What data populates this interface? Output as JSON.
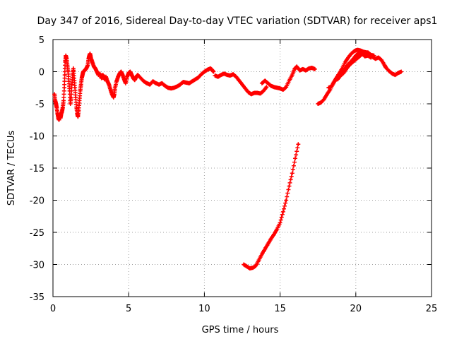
{
  "chart_data": {
    "type": "scatter",
    "title": "Day 347 of 2016, Sidereal Day-to-day VTEC variation (SDTVAR) for receiver aps1",
    "xlabel": "GPS time / hours",
    "ylabel": "SDTVAR / TECUs",
    "xlim": [
      0,
      25
    ],
    "ylim": [
      -35,
      5
    ],
    "xticks": [
      0,
      5,
      10,
      15,
      20,
      25
    ],
    "yticks": [
      5,
      0,
      -5,
      -10,
      -15,
      -20,
      -25,
      -30,
      -35
    ],
    "x_tick_labels": [
      "0",
      "5",
      "10",
      "15",
      "20",
      "25"
    ],
    "y_tick_labels": [
      "5",
      "0",
      "-5",
      "-10",
      "-15",
      "-20",
      "-25",
      "-30",
      "-35"
    ],
    "grid": true,
    "marker": "+",
    "series": [
      {
        "name": "aps1",
        "color": "#ff0000",
        "segments": [
          [
            [
              0.1,
              -3.5
            ],
            [
              0.15,
              -4.5
            ],
            [
              0.2,
              -5
            ],
            [
              0.25,
              -5.6
            ],
            [
              0.3,
              -6.5
            ],
            [
              0.35,
              -7.2
            ],
            [
              0.4,
              -7.5
            ],
            [
              0.45,
              -6.8
            ],
            [
              0.5,
              -7.2
            ],
            [
              0.55,
              -6.5
            ],
            [
              0.6,
              -6.2
            ],
            [
              0.65,
              -5.5
            ],
            [
              0.7,
              -4.5
            ],
            [
              0.75,
              -2.5
            ],
            [
              0.78,
              -0.5
            ],
            [
              0.8,
              1.5
            ],
            [
              0.85,
              2.5
            ],
            [
              0.9,
              2
            ],
            [
              0.95,
              1
            ],
            [
              1.0,
              0
            ],
            [
              1.05,
              -1.5
            ],
            [
              1.1,
              -3
            ],
            [
              1.15,
              -5
            ],
            [
              1.2,
              -4
            ],
            [
              1.25,
              -2
            ],
            [
              1.3,
              -0.5
            ],
            [
              1.35,
              0.5
            ],
            [
              1.4,
              -1
            ],
            [
              1.45,
              -2.5
            ],
            [
              1.5,
              -4
            ],
            [
              1.55,
              -5.5
            ],
            [
              1.6,
              -6.5
            ],
            [
              1.65,
              -7
            ],
            [
              1.7,
              -6
            ],
            [
              1.75,
              -4.5
            ],
            [
              1.8,
              -3
            ],
            [
              1.85,
              -2
            ],
            [
              1.9,
              -1
            ],
            [
              1.95,
              -0.5
            ],
            [
              2.0,
              0
            ],
            [
              2.1,
              0.2
            ],
            [
              2.2,
              0.5
            ],
            [
              2.3,
              1
            ],
            [
              2.35,
              2
            ],
            [
              2.4,
              2.5
            ],
            [
              2.45,
              2.8
            ],
            [
              2.5,
              2.2
            ],
            [
              2.6,
              1.5
            ],
            [
              2.7,
              0.8
            ],
            [
              2.8,
              0.5
            ],
            [
              2.9,
              0
            ],
            [
              3.0,
              -0.5
            ]
          ],
          [
            [
              3.1,
              -0.3
            ],
            [
              3.2,
              -1
            ],
            [
              3.3,
              -0.5
            ],
            [
              3.4,
              -1.2
            ],
            [
              3.5,
              -0.8
            ],
            [
              3.6,
              -1.5
            ],
            [
              3.7,
              -2
            ],
            [
              3.8,
              -2.8
            ],
            [
              3.9,
              -3.5
            ],
            [
              4.0,
              -4
            ],
            [
              4.05,
              -3.5
            ],
            [
              4.1,
              -2.5
            ],
            [
              4.2,
              -1.5
            ],
            [
              4.3,
              -0.8
            ],
            [
              4.4,
              -0.3
            ],
            [
              4.5,
              0
            ],
            [
              4.6,
              -0.5
            ],
            [
              4.7,
              -1.2
            ],
            [
              4.8,
              -1.8
            ],
            [
              4.9,
              -0.8
            ],
            [
              5.0,
              -0.2
            ],
            [
              5.1,
              0
            ],
            [
              5.2,
              -0.5
            ],
            [
              5.3,
              -1
            ],
            [
              5.4,
              -1.3
            ],
            [
              5.5,
              -0.8
            ],
            [
              5.6,
              -0.5
            ],
            [
              5.8,
              -1
            ],
            [
              6.0,
              -1.5
            ],
            [
              6.2,
              -1.8
            ],
            [
              6.4,
              -2
            ],
            [
              6.6,
              -1.5
            ],
            [
              6.8,
              -1.8
            ],
            [
              7.0,
              -2
            ],
            [
              7.2,
              -1.8
            ],
            [
              7.4,
              -2.2
            ],
            [
              7.6,
              -2.5
            ],
            [
              7.8,
              -2.6
            ],
            [
              8.0,
              -2.5
            ],
            [
              8.2,
              -2.3
            ],
            [
              8.4,
              -2
            ],
            [
              8.6,
              -1.6
            ],
            [
              8.8,
              -1.7
            ],
            [
              9.0,
              -1.8
            ],
            [
              9.2,
              -1.5
            ],
            [
              9.4,
              -1.2
            ],
            [
              9.6,
              -0.9
            ],
            [
              9.8,
              -0.4
            ],
            [
              10.0,
              0
            ],
            [
              10.2,
              0.3
            ],
            [
              10.4,
              0.5
            ],
            [
              10.5,
              0.3
            ],
            [
              10.6,
              0
            ]
          ],
          [
            [
              10.7,
              -0.6
            ],
            [
              10.9,
              -0.8
            ],
            [
              11.1,
              -0.5
            ],
            [
              11.3,
              -0.3
            ],
            [
              11.5,
              -0.5
            ],
            [
              11.7,
              -0.6
            ],
            [
              11.9,
              -0.4
            ],
            [
              12.1,
              -0.8
            ],
            [
              12.3,
              -1.4
            ],
            [
              12.5,
              -2
            ],
            [
              12.7,
              -2.6
            ],
            [
              12.9,
              -3.2
            ],
            [
              13.1,
              -3.5
            ],
            [
              13.3,
              -3.3
            ],
            [
              13.5,
              -3.3
            ],
            [
              13.7,
              -3.4
            ],
            [
              13.9,
              -3
            ],
            [
              14.1,
              -2.4
            ]
          ],
          [
            [
              13.8,
              -1.8
            ],
            [
              14.0,
              -1.4
            ],
            [
              14.2,
              -1.8
            ],
            [
              14.4,
              -2.2
            ],
            [
              14.6,
              -2.4
            ],
            [
              14.8,
              -2.5
            ],
            [
              15.0,
              -2.6
            ],
            [
              15.2,
              -2.8
            ],
            [
              15.4,
              -2.4
            ],
            [
              15.6,
              -1.4
            ],
            [
              15.8,
              -0.5
            ],
            [
              15.95,
              0.4
            ],
            [
              16.1,
              0.8
            ],
            [
              16.3,
              0.2
            ],
            [
              16.5,
              0.4
            ],
            [
              16.7,
              0.2
            ],
            [
              16.9,
              0.5
            ],
            [
              17.1,
              0.6
            ],
            [
              17.3,
              0.4
            ]
          ],
          [
            [
              12.6,
              -30
            ],
            [
              12.8,
              -30.3
            ],
            [
              13.0,
              -30.6
            ],
            [
              13.2,
              -30.5
            ],
            [
              13.4,
              -30.2
            ],
            [
              13.6,
              -29.3
            ],
            [
              13.8,
              -28.4
            ],
            [
              14.0,
              -27.6
            ],
            [
              14.2,
              -26.8
            ],
            [
              14.4,
              -26
            ],
            [
              14.6,
              -25.3
            ],
            [
              14.8,
              -24.5
            ],
            [
              15.0,
              -23.5
            ],
            [
              15.2,
              -21.8
            ],
            [
              15.4,
              -20
            ],
            [
              15.6,
              -17.8
            ],
            [
              15.8,
              -15.8
            ],
            [
              16.0,
              -13.5
            ],
            [
              16.2,
              -11.3
            ]
          ],
          [
            [
              17.5,
              -5
            ],
            [
              17.7,
              -4.8
            ],
            [
              17.9,
              -4.3
            ],
            [
              18.1,
              -3.5
            ],
            [
              18.3,
              -2.8
            ],
            [
              18.5,
              -1.8
            ],
            [
              18.7,
              -1
            ],
            [
              18.9,
              -0.3
            ],
            [
              19.1,
              0.5
            ],
            [
              19.3,
              1.5
            ],
            [
              19.5,
              2.2
            ],
            [
              19.7,
              2.8
            ],
            [
              19.9,
              3.2
            ],
            [
              20.1,
              3.4
            ],
            [
              20.3,
              3.3
            ],
            [
              20.5,
              3.1
            ],
            [
              20.7,
              3
            ],
            [
              20.9,
              2.6
            ],
            [
              21.1,
              2.3
            ],
            [
              21.3,
              2
            ],
            [
              21.5,
              2.2
            ],
            [
              21.7,
              1.8
            ],
            [
              21.9,
              1
            ],
            [
              22.0,
              0.6
            ],
            [
              22.2,
              0.1
            ],
            [
              22.4,
              -0.3
            ],
            [
              22.6,
              -0.5
            ],
            [
              22.8,
              -0.2
            ],
            [
              23.0,
              0
            ]
          ],
          [
            [
              18.2,
              -2.5
            ],
            [
              18.4,
              -2.3
            ],
            [
              18.6,
              -1.5
            ],
            [
              18.8,
              -1
            ],
            [
              19.0,
              -0.3
            ],
            [
              19.2,
              0.2
            ],
            [
              19.4,
              0.9
            ],
            [
              19.6,
              1.4
            ],
            [
              19.8,
              1.9
            ],
            [
              20.0,
              2.5
            ],
            [
              20.2,
              2.9
            ],
            [
              20.4,
              2.8
            ],
            [
              20.6,
              2.4
            ],
            [
              20.8,
              2.5
            ],
            [
              21.0,
              2.2
            ]
          ],
          [
            [
              18.8,
              -1.2
            ],
            [
              19.0,
              -0.6
            ],
            [
              19.2,
              -0.2
            ],
            [
              19.4,
              0.5
            ],
            [
              19.6,
              1.1
            ],
            [
              19.8,
              1.5
            ],
            [
              20.0,
              1.9
            ],
            [
              20.2,
              2.3
            ],
            [
              20.4,
              2.7
            ],
            [
              20.6,
              2.9
            ],
            [
              20.8,
              3
            ],
            [
              21.0,
              2.6
            ],
            [
              21.2,
              2.5
            ]
          ]
        ]
      }
    ]
  }
}
